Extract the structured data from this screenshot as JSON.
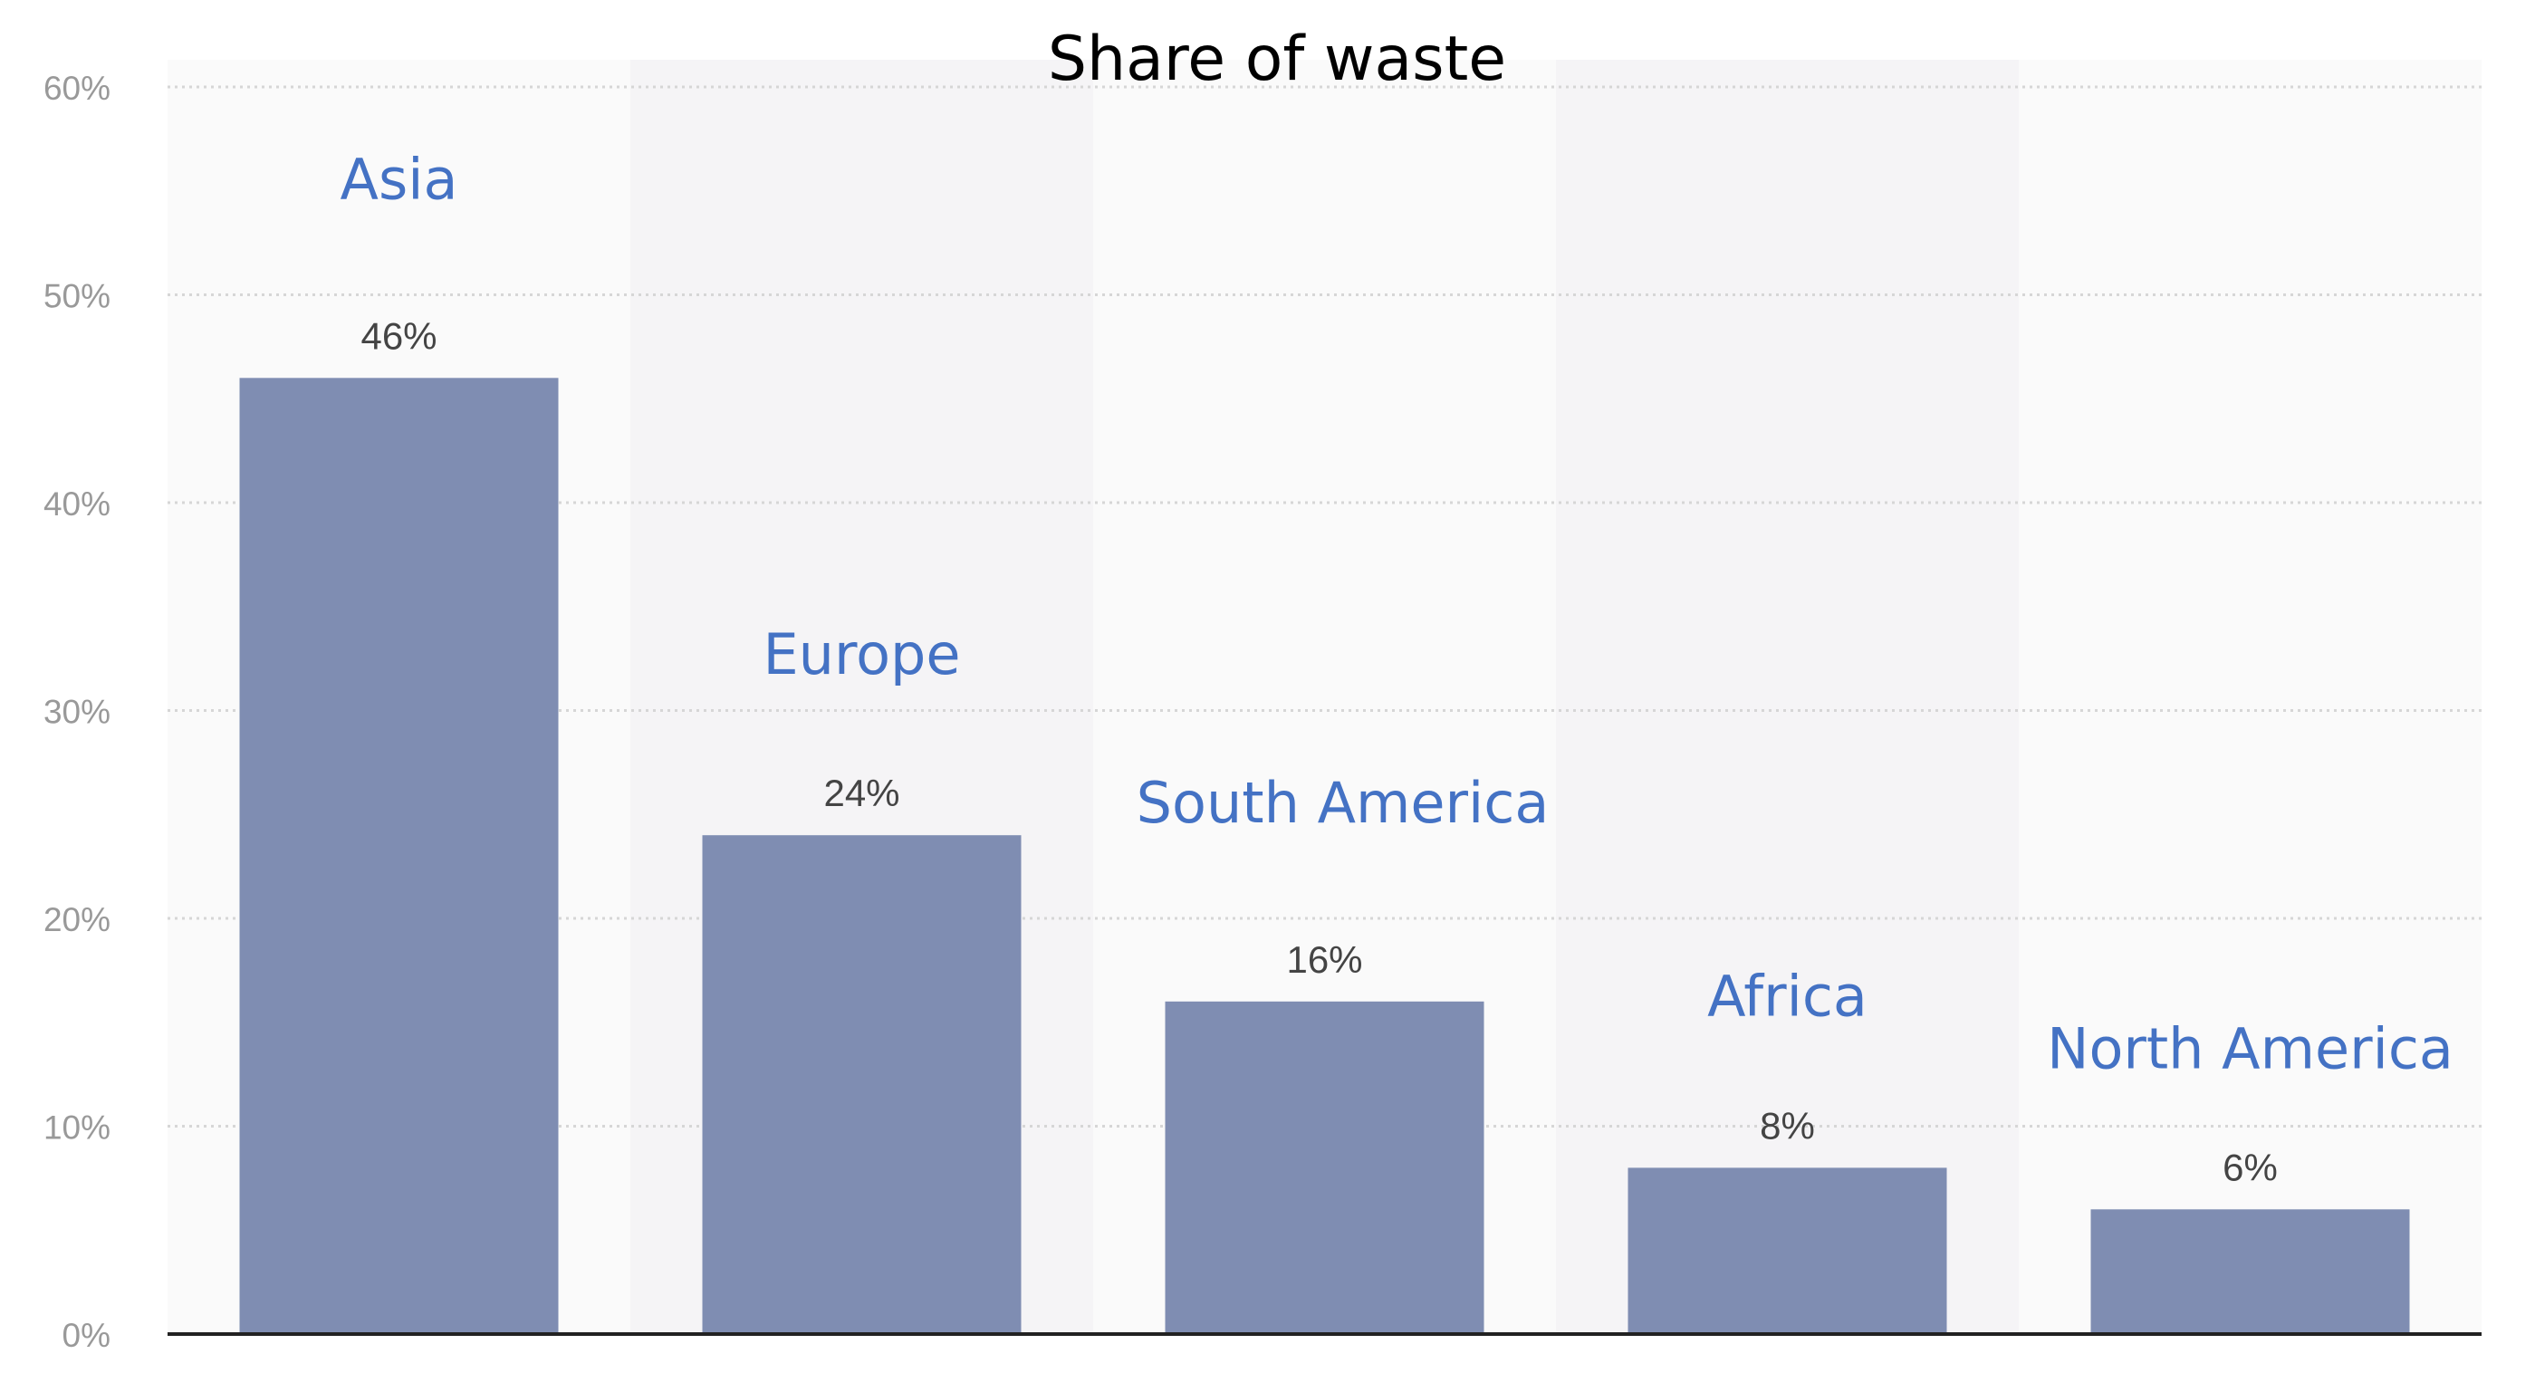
{
  "chart_data": {
    "type": "bar",
    "title": "Share of waste",
    "categories": [
      "Asia",
      "Europe",
      "South America",
      "Africa",
      "North America"
    ],
    "values": [
      46,
      24,
      16,
      8,
      6
    ],
    "value_labels": [
      "46%",
      "24%",
      "16%",
      "8%",
      "6%"
    ],
    "ylim": [
      0,
      60
    ],
    "yticks": [
      0,
      10,
      20,
      30,
      40,
      50,
      60
    ],
    "ytick_labels": [
      "0%",
      "10%",
      "20%",
      "30%",
      "40%",
      "50%",
      "60%"
    ],
    "xlabel": "",
    "ylabel": "",
    "grid": true,
    "colors": {
      "bar": "#7f8db2",
      "category_label": "#4472c4",
      "plot_band": "#f5f4f6",
      "grid": "#d6d6d6",
      "axis": "#222222"
    }
  }
}
